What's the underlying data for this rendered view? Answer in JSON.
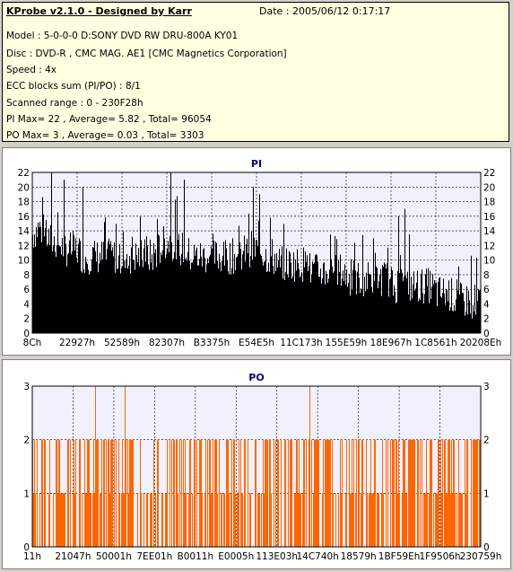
{
  "info": {
    "title": "KProbe v2.1.0 - Designed by Karr",
    "date": "Date : 2005/06/12 0:17:17",
    "lines": [
      "Model : 5-0-0-0 D:SONY    DVD RW DRU-800A  KY01",
      "Disc : DVD-R , CMC MAG. AE1 [CMC Magnetics Corporation]",
      "Speed : 4x",
      "ECC blocks sum (PI/PO) : 8/1",
      "Scanned range : 0 - 230F28h",
      "PI Max= 22 , Average= 5.82 , Total= 96054",
      "PO Max= 3 , Average= 0.03 , Total= 3303"
    ]
  },
  "colors": {
    "pi_bar": "#000000",
    "po_bar": "#ff6600",
    "plot_bg": "#f0f0ff",
    "title": "#000080",
    "panel_bg": "#d4d0c8"
  },
  "chart_data": [
    {
      "type": "bar",
      "title": "PI",
      "ylim": [
        0,
        22
      ],
      "yticks": [
        0,
        2,
        4,
        6,
        8,
        10,
        12,
        14,
        16,
        18,
        20,
        22
      ],
      "xticks": [
        "8Ch",
        "22927h",
        "52589h",
        "82307h",
        "B3375h",
        "E54E5h",
        "11C173h",
        "155E59h",
        "18E967h",
        "1C8561h",
        "20208Eh"
      ],
      "grid": true,
      "profile": [
        14,
        15,
        14,
        13,
        13,
        12,
        12,
        12,
        11,
        11,
        11,
        11,
        11,
        11,
        11,
        11,
        11,
        11,
        11,
        11,
        12,
        13,
        13,
        12,
        12,
        11,
        11,
        11,
        11,
        11,
        11,
        11,
        11,
        11,
        12,
        12,
        12,
        11,
        11,
        10,
        10,
        10,
        10,
        10,
        9,
        9,
        9,
        9,
        9,
        9,
        8,
        8,
        8,
        8,
        8,
        8,
        8,
        7,
        7,
        7,
        7,
        7,
        7,
        7,
        6,
        6,
        6,
        5,
        5,
        5,
        5,
        5
      ],
      "spikes": [
        {
          "i": 3,
          "v": 22
        },
        {
          "i": 5,
          "v": 21
        },
        {
          "i": 8,
          "v": 20
        },
        {
          "i": 22,
          "v": 22
        },
        {
          "i": 24,
          "v": 21
        },
        {
          "i": 35,
          "v": 20
        },
        {
          "i": 36,
          "v": 19
        },
        {
          "i": 59,
          "v": 17
        },
        {
          "i": 58,
          "v": 16
        }
      ]
    },
    {
      "type": "bar",
      "title": "PO",
      "ylim": [
        0,
        3
      ],
      "yticks": [
        0,
        1,
        2,
        3
      ],
      "xticks": [
        "11h",
        "21047h",
        "50001h",
        "7EE01h",
        "B0011h",
        "E0005h",
        "113E03h",
        "14C740h",
        "18579h",
        "1BF59Eh",
        "1F9506h",
        "230759h"
      ],
      "grid": true,
      "spikes_at_3": [
        0.14,
        0.205,
        0.618
      ]
    }
  ]
}
